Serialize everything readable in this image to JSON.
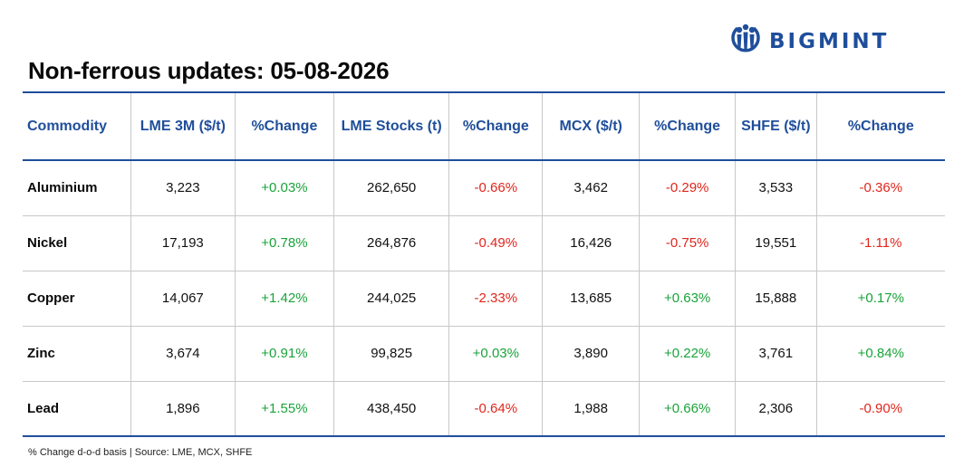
{
  "brand": {
    "logo_text": "BIGMINT",
    "logo_icon": "bigmint-people-logo-icon",
    "brand_color": "#1f4e9b"
  },
  "title": "Non-ferrous updates: 05-08-2026",
  "table": {
    "headers": [
      "Commodity",
      "LME 3M ($/t)",
      "%Change",
      "LME Stocks (t)",
      "%Change",
      "MCX ($/t)",
      "%Change",
      "SHFE ($/t)",
      "%Change"
    ],
    "rows": [
      {
        "commodity": "Aluminium",
        "lme3m": "3,223",
        "lme3m_chg": "+0.03%",
        "stocks": "262,650",
        "stocks_chg": "-0.66%",
        "mcx": "3,462",
        "mcx_chg": "-0.29%",
        "shfe": "3,533",
        "shfe_chg": "-0.36%"
      },
      {
        "commodity": "Nickel",
        "lme3m": "17,193",
        "lme3m_chg": "+0.78%",
        "stocks": "264,876",
        "stocks_chg": "-0.49%",
        "mcx": "16,426",
        "mcx_chg": "-0.75%",
        "shfe": "19,551",
        "shfe_chg": "-1.11%"
      },
      {
        "commodity": "Copper",
        "lme3m": "14,067",
        "lme3m_chg": "+1.42%",
        "stocks": "244,025",
        "stocks_chg": "-2.33%",
        "mcx": "13,685",
        "mcx_chg": "+0.63%",
        "shfe": "15,888",
        "shfe_chg": "+0.17%"
      },
      {
        "commodity": "Zinc",
        "lme3m": "3,674",
        "lme3m_chg": "+0.91%",
        "stocks": "99,825",
        "stocks_chg": "+0.03%",
        "mcx": "3,890",
        "mcx_chg": "+0.22%",
        "shfe": "3,761",
        "shfe_chg": "+0.84%"
      },
      {
        "commodity": "Lead",
        "lme3m": "1,896",
        "lme3m_chg": "+1.55%",
        "stocks": "438,450",
        "stocks_chg": "-0.64%",
        "mcx": "1,988",
        "mcx_chg": "+0.66%",
        "shfe": "2,306",
        "shfe_chg": "-0.90%"
      }
    ]
  },
  "colors": {
    "header_text": "#1f4e9b",
    "positive": "#1aa33a",
    "negative": "#e0261c"
  },
  "footnote": "% Change d-o-d basis | Source: LME, MCX, SHFE"
}
